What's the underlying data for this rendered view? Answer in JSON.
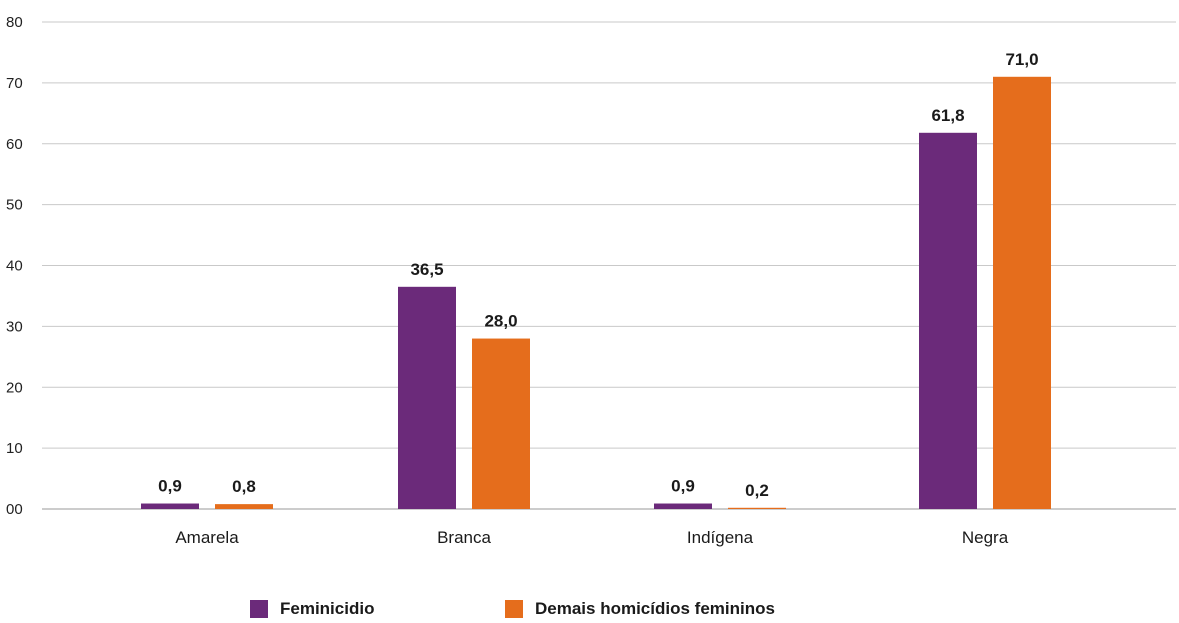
{
  "chart_data": {
    "type": "bar",
    "categories": [
      "Amarela",
      "Branca",
      "Indígena",
      "Negra"
    ],
    "series": [
      {
        "name": "Feminicidio",
        "values": [
          0.9,
          36.5,
          0.9,
          61.8
        ],
        "labels": [
          "0,9",
          "36,5",
          "0,9",
          "61,8"
        ],
        "color": "#6b2a7a"
      },
      {
        "name": "Demais homicídios femininos",
        "values": [
          0.8,
          28.0,
          0.2,
          71.0
        ],
        "labels": [
          "0,8",
          "28,0",
          "0,2",
          "71,0"
        ],
        "color": "#e56d1c"
      }
    ],
    "yticks": [
      "00",
      "10",
      "20",
      "30",
      "40",
      "50",
      "60",
      "70",
      "80"
    ],
    "ylim": [
      0,
      80
    ],
    "grid": true,
    "legend": "bottom"
  }
}
